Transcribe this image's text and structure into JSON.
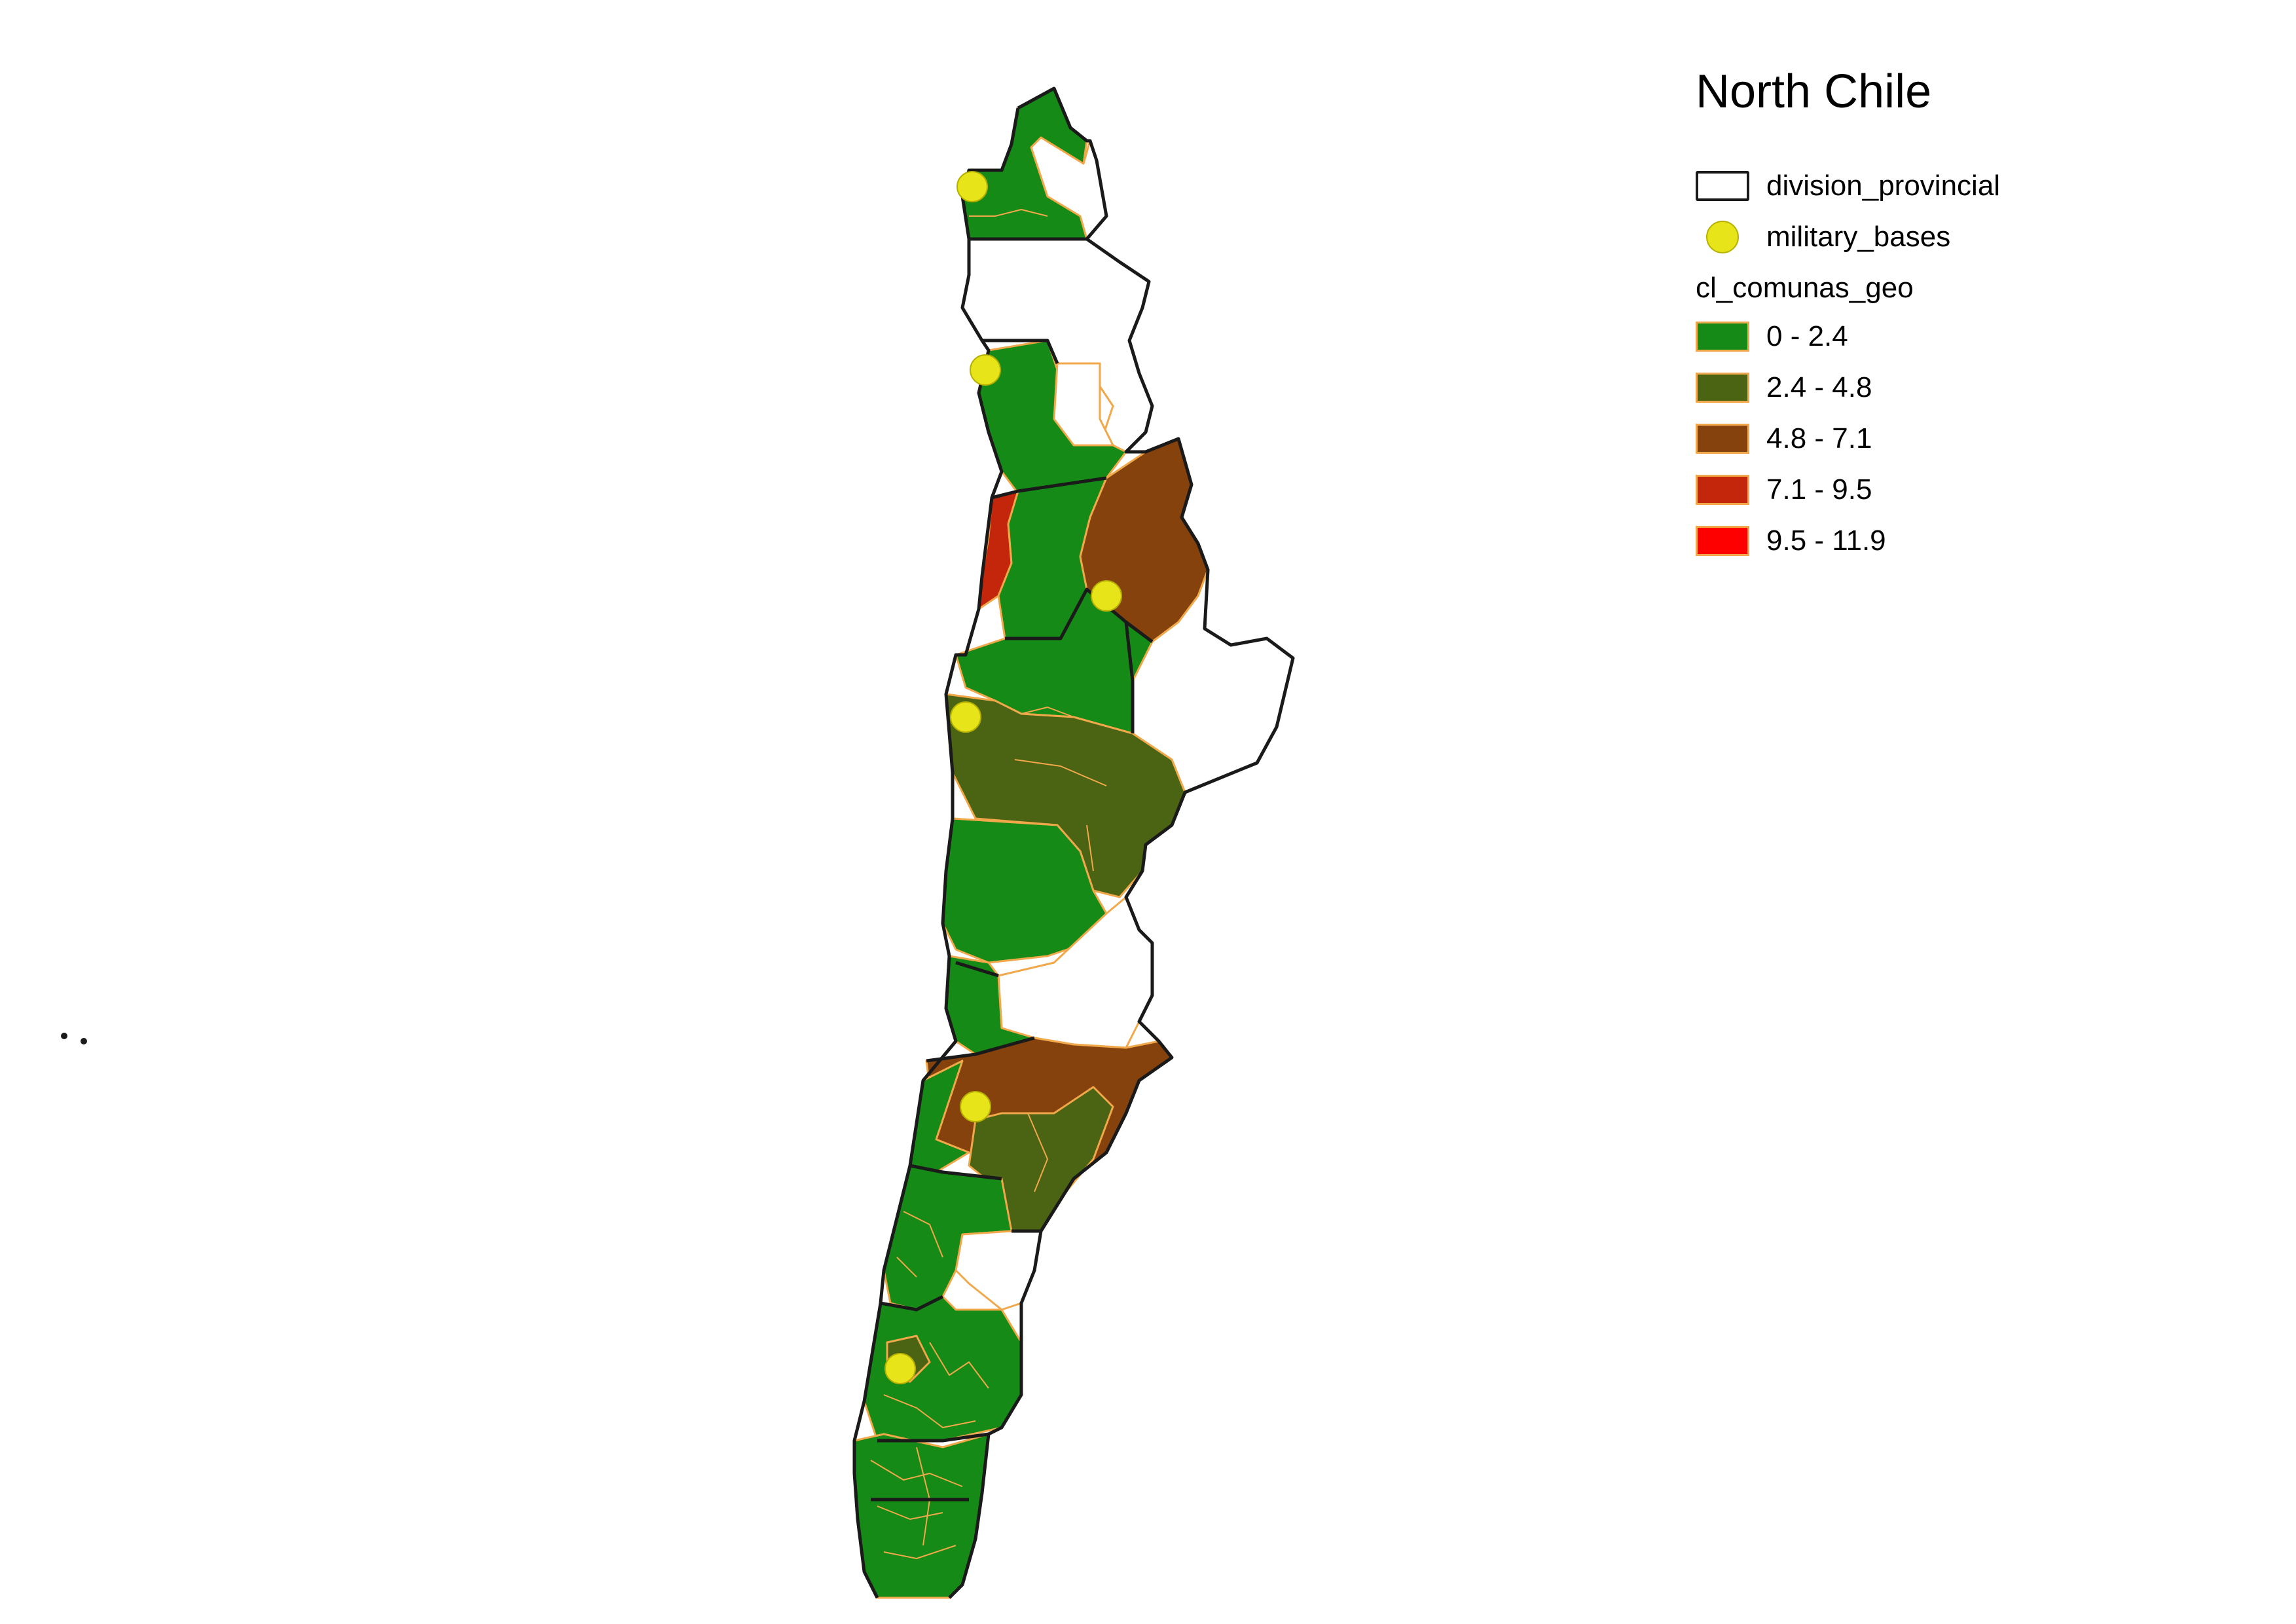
{
  "map": {
    "title": "North Chile",
    "legend": {
      "layers": [
        {
          "label": "division_provincial",
          "kind": "polygon-outline",
          "stroke": "#1a1a1a",
          "fill": "#ffffff"
        },
        {
          "label": "military_bases",
          "kind": "point",
          "fill": "#e8e41a"
        }
      ],
      "choropleth_title": "cl_comunas_geo",
      "classes": [
        {
          "label": "0 - 2.4",
          "color": "#168a16"
        },
        {
          "label": "2.4 - 4.8",
          "color": "#4b6414"
        },
        {
          "label": "4.8 - 7.1",
          "color": "#86420c"
        },
        {
          "label": "7.1 - 9.5",
          "color": "#c4260c"
        },
        {
          "label": "9.5 - 11.9",
          "color": "#ff0000"
        }
      ]
    },
    "commune_edge_color": "#f0a84a",
    "province_edge_color": "#1a1a1a"
  }
}
